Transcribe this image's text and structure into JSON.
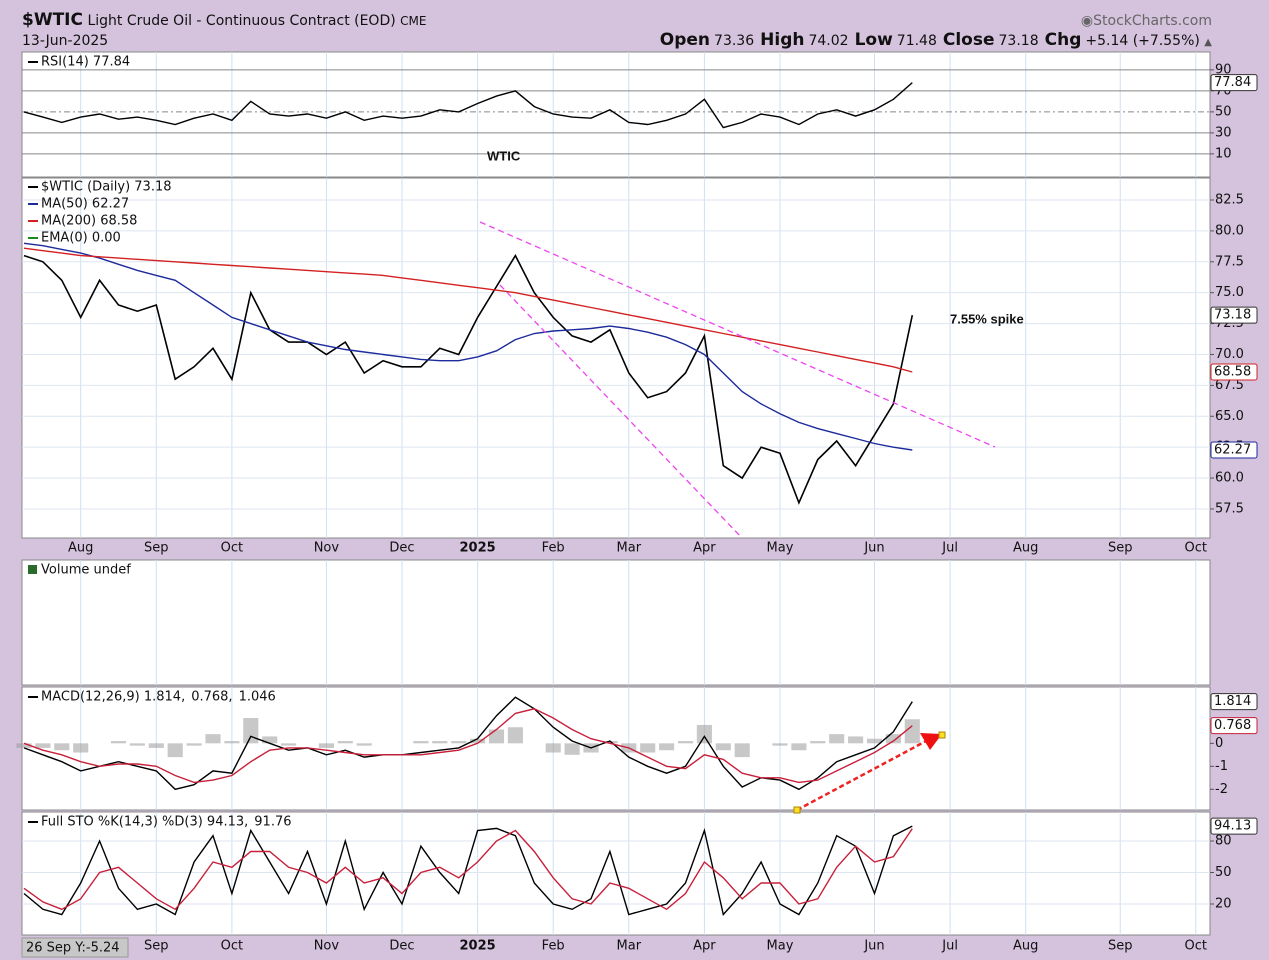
{
  "header": {
    "symbol": "$WTIC",
    "name": "Light Crude Oil - Continuous Contract (EOD)",
    "exchange": "CME",
    "date": "13-Jun-2025",
    "source": "StockCharts.com",
    "quote": [
      {
        "label": "Open",
        "value": 73.36
      },
      {
        "label": "High",
        "value": 74.02
      },
      {
        "label": "Low",
        "value": 71.48
      },
      {
        "label": "Close",
        "value": 73.18
      },
      {
        "label": "Chg",
        "value": "+5.14 (+7.55%)"
      }
    ]
  },
  "cursor_label": "26 Sep Y:-5.24",
  "chart_data": [
    {
      "type": "line",
      "annotation": "WTIC",
      "annotation_color": "#a22ae0",
      "ylim": [
        -12,
        107
      ],
      "yticks": [
        10,
        30,
        50,
        70,
        90
      ],
      "grid": true,
      "series": [
        {
          "name": "RSI(14) 77.84",
          "color": "#000000",
          "value_box": true,
          "values": [
            50,
            45,
            40,
            45,
            48,
            43,
            45,
            42,
            38,
            44,
            48,
            42,
            60,
            48,
            46,
            48,
            44,
            50,
            42,
            46,
            44,
            46,
            52,
            50,
            58,
            65,
            70,
            55,
            48,
            45,
            44,
            52,
            40,
            38,
            42,
            48,
            62,
            35,
            40,
            48,
            45,
            38,
            48,
            52,
            46,
            52,
            62,
            77.84,
            null,
            null,
            null,
            null,
            null,
            null,
            null,
            null,
            null,
            null,
            null,
            null,
            null,
            null,
            null
          ]
        }
      ]
    },
    {
      "type": "line",
      "annotation": "7.55% spike",
      "annotation_color": "#a22ae0",
      "ylim": [
        55.15,
        84.28
      ],
      "yticks": [
        57.5,
        {
          "value": 60,
          "label": "60.0"
        },
        62.5,
        {
          "value": 65,
          "label": "65.0"
        },
        67.5,
        {
          "value": 70,
          "label": "70.0"
        },
        72.5,
        {
          "value": 75,
          "label": "75.0"
        },
        77.5,
        {
          "value": 80,
          "label": "80.0"
        },
        82.5
      ],
      "grid": true,
      "categories": [
        null,
        null,
        null,
        "Aug",
        null,
        null,
        null,
        "Sep",
        null,
        null,
        null,
        "Oct",
        null,
        null,
        null,
        null,
        "Nov",
        null,
        null,
        null,
        "Dec",
        null,
        null,
        null,
        "2025",
        null,
        null,
        null,
        "Feb",
        null,
        null,
        null,
        "Mar",
        null,
        null,
        null,
        "Apr",
        null,
        null,
        null,
        "May",
        null,
        null,
        null,
        null,
        "Jun",
        null,
        null,
        null,
        "Jul",
        null,
        null,
        null,
        "Aug",
        null,
        null,
        null,
        null,
        "Sep",
        null,
        null,
        null,
        "Oct"
      ],
      "extra_legend": {
        "text": "EMA(0) 0.00",
        "color": "#1a8a1a"
      },
      "series": [
        {
          "name": "$WTIC (Daily) 73.18",
          "color": "#000000",
          "value_box": true,
          "values": [
            78,
            77.5,
            76,
            73,
            76,
            74,
            73.5,
            74,
            68,
            69,
            70.5,
            68,
            75,
            72,
            71,
            71,
            70,
            71,
            68.5,
            69.5,
            69,
            69,
            70.5,
            70,
            73,
            75.5,
            78,
            75,
            73,
            71.5,
            71,
            72,
            68.5,
            66.5,
            67,
            68.5,
            71.5,
            61,
            60,
            62.5,
            62,
            58,
            61.5,
            63,
            61,
            63.5,
            66,
            73.18,
            null,
            null,
            null,
            null,
            null,
            null,
            null,
            null,
            null,
            null,
            null,
            null,
            null,
            null,
            null
          ]
        },
        {
          "name": "MA(50) 62.27",
          "color": "#1c2a9c",
          "value_box": true,
          "values": [
            79,
            78.8,
            78.5,
            78.2,
            77.8,
            77.3,
            76.8,
            76.4,
            76,
            75,
            74,
            73,
            72.5,
            72,
            71.5,
            71,
            70.7,
            70.4,
            70.2,
            70,
            69.8,
            69.6,
            69.5,
            69.5,
            69.8,
            70.3,
            71.2,
            71.7,
            71.9,
            72,
            72.1,
            72.3,
            72.1,
            71.8,
            71.4,
            70.8,
            70,
            68.5,
            67,
            66,
            65.2,
            64.5,
            64,
            63.6,
            63.2,
            62.8,
            62.5,
            62.27,
            null,
            null,
            null,
            null,
            null,
            null,
            null,
            null,
            null,
            null,
            null,
            null,
            null,
            null,
            null
          ]
        },
        {
          "name": "MA(200) 68.58",
          "color": "#d42020",
          "value_box": true,
          "values": [
            78.6,
            78.4,
            78.2,
            78,
            77.9,
            77.8,
            77.7,
            77.6,
            77.5,
            77.4,
            77.3,
            77.2,
            77.1,
            77,
            76.9,
            76.8,
            76.7,
            76.6,
            76.5,
            76.4,
            76.2,
            76,
            75.8,
            75.6,
            75.4,
            75.2,
            75,
            74.7,
            74.4,
            74.1,
            73.8,
            73.5,
            73.2,
            72.9,
            72.6,
            72.3,
            72,
            71.7,
            71.4,
            71.1,
            70.8,
            70.5,
            70.2,
            69.9,
            69.6,
            69.3,
            69,
            68.58,
            null,
            null,
            null,
            null,
            null,
            null,
            null,
            null,
            null,
            null,
            null,
            null,
            null,
            null,
            null
          ]
        }
      ]
    },
    {
      "type": "bar",
      "title": "Volume undef"
    },
    {
      "type": "line",
      "ylim": [
        -2.9,
        2.45
      ],
      "yticks": [
        -2,
        -1,
        0
      ],
      "grid": false,
      "series": [
        {
          "name": "1.046",
          "color": "#9a9a9a",
          "kind": "histogram",
          "values": [
            -0.2,
            -0.2,
            -0.3,
            -0.4,
            0,
            0.1,
            -0.1,
            -0.2,
            -0.6,
            -0.1,
            0.4,
            0.1,
            1.1,
            0.3,
            -0.1,
            0,
            -0.2,
            0.1,
            -0.1,
            0,
            0,
            0.1,
            0.1,
            0.1,
            0.2,
            0.6,
            0.7,
            0,
            -0.4,
            -0.5,
            -0.4,
            0.1,
            -0.4,
            -0.4,
            -0.3,
            0.1,
            0.8,
            -0.3,
            -0.6,
            0,
            -0.1,
            -0.3,
            0.1,
            0.4,
            0.3,
            0.2,
            0.4,
            1.046,
            null,
            null,
            null,
            null,
            null,
            null,
            null,
            null,
            null,
            null,
            null,
            null,
            null,
            null,
            null
          ]
        },
        {
          "name": "MACD(12,26,9) 1.814,",
          "color": "#000000",
          "value_box": true,
          "values": [
            -0.2,
            -0.5,
            -0.8,
            -1.2,
            -1,
            -0.8,
            -1,
            -1.2,
            -2,
            -1.8,
            -1.2,
            -1.3,
            0.3,
            0,
            -0.3,
            -0.2,
            -0.5,
            -0.3,
            -0.6,
            -0.5,
            -0.5,
            -0.4,
            -0.3,
            -0.2,
            0.2,
            1.2,
            2,
            1.5,
            0.7,
            0.1,
            -0.2,
            0.1,
            -0.6,
            -1,
            -1.3,
            -1,
            0.3,
            -1,
            -1.9,
            -1.5,
            -1.6,
            -2,
            -1.5,
            -0.8,
            -0.5,
            -0.2,
            0.5,
            1.814,
            null,
            null,
            null,
            null,
            null,
            null,
            null,
            null,
            null,
            null,
            null,
            null,
            null,
            null,
            null
          ]
        },
        {
          "name": "0.768,",
          "color": "#c8203a",
          "value_box": true,
          "values": [
            0,
            -0.3,
            -0.5,
            -0.8,
            -1,
            -0.9,
            -0.9,
            -1,
            -1.4,
            -1.7,
            -1.6,
            -1.4,
            -0.8,
            -0.3,
            -0.2,
            -0.2,
            -0.3,
            -0.4,
            -0.5,
            -0.5,
            -0.5,
            -0.5,
            -0.4,
            -0.3,
            0,
            0.6,
            1.3,
            1.5,
            1.1,
            0.6,
            0.2,
            0,
            -0.2,
            -0.6,
            -1,
            -1.1,
            -0.5,
            -0.7,
            -1.3,
            -1.5,
            -1.5,
            -1.7,
            -1.6,
            -1.2,
            -0.8,
            -0.4,
            0.1,
            0.768,
            null,
            null,
            null,
            null,
            null,
            null,
            null,
            null,
            null,
            null,
            null,
            null,
            null,
            null,
            null
          ]
        }
      ],
      "legend_order": [
        1,
        2,
        0
      ]
    },
    {
      "type": "line",
      "ylim": [
        -9.5,
        107.6
      ],
      "yticks": [
        20,
        50,
        80
      ],
      "grid": true,
      "series": [
        {
          "name": "Full STO %K(14,3) %D(3) 94.13,",
          "color": "#000000",
          "value_box": true,
          "values": [
            30,
            15,
            10,
            40,
            80,
            35,
            15,
            20,
            10,
            60,
            85,
            30,
            90,
            60,
            30,
            70,
            20,
            80,
            15,
            50,
            20,
            75,
            50,
            30,
            90,
            92,
            85,
            40,
            20,
            15,
            25,
            70,
            10,
            15,
            20,
            40,
            90,
            10,
            30,
            60,
            20,
            10,
            40,
            85,
            75,
            30,
            85,
            94.13,
            null,
            null,
            null,
            null,
            null,
            null,
            null,
            null,
            null,
            null,
            null,
            null,
            null,
            null,
            null
          ]
        },
        {
          "name": "91.76",
          "color": "#c8203a",
          "values": [
            35,
            22,
            15,
            25,
            50,
            55,
            40,
            25,
            15,
            35,
            60,
            55,
            70,
            70,
            55,
            50,
            40,
            55,
            40,
            45,
            30,
            50,
            55,
            45,
            60,
            80,
            90,
            70,
            45,
            25,
            20,
            40,
            35,
            25,
            15,
            30,
            60,
            45,
            25,
            40,
            40,
            20,
            25,
            55,
            75,
            60,
            65,
            91.76,
            null,
            null,
            null,
            null,
            null,
            null,
            null,
            null,
            null,
            null,
            null,
            null,
            null,
            null,
            null
          ]
        }
      ]
    }
  ]
}
